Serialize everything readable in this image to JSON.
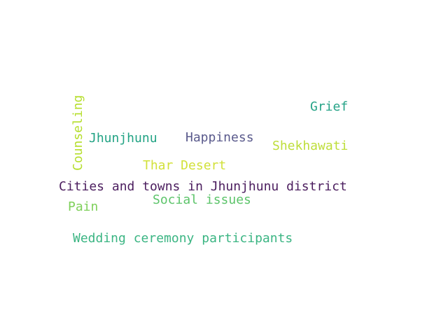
{
  "words": {
    "counseling": {
      "text": "Counseling",
      "color": "#b5de2b"
    },
    "grief": {
      "text": "Grief",
      "color": "#26a387"
    },
    "jhunjhunu": {
      "text": "Jhunjhunu",
      "color": "#22a384"
    },
    "happiness": {
      "text": "Happiness",
      "color": "#5a5a8c"
    },
    "shekhawati": {
      "text": "Shekhawati",
      "color": "#bede3a"
    },
    "thar_desert": {
      "text": "Thar Desert",
      "color": "#d2e13a"
    },
    "cities": {
      "text": "Cities and towns in Jhunjhunu district",
      "color": "#4b1d5e"
    },
    "social_issues": {
      "text": "Social issues",
      "color": "#5cc46a"
    },
    "pain": {
      "text": "Pain",
      "color": "#7ed05a"
    },
    "wedding": {
      "text": "Wedding ceremony participants",
      "color": "#3bb583"
    }
  }
}
